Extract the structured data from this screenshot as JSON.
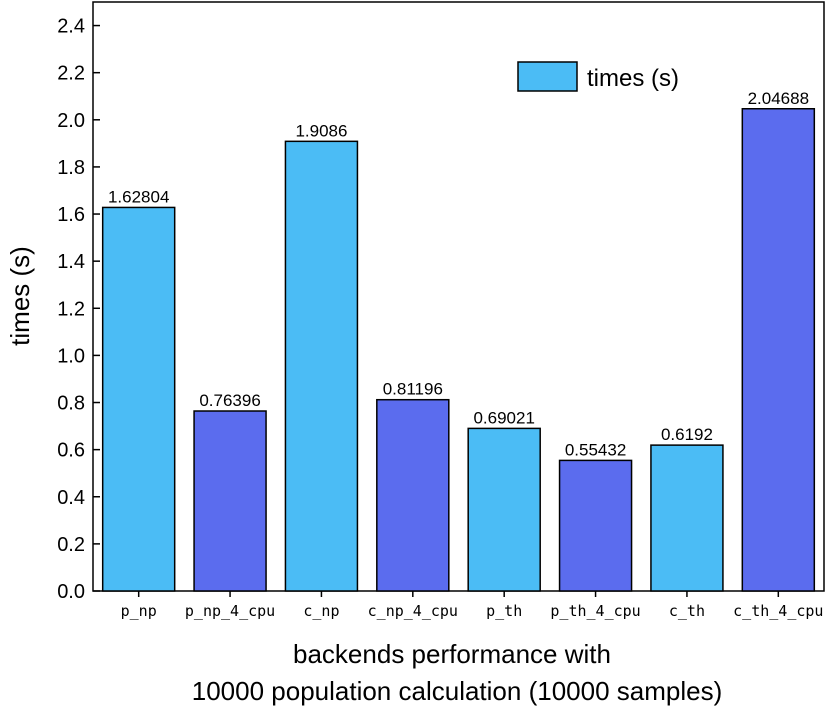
{
  "chart_data": {
    "type": "bar",
    "categories": [
      "p_np",
      "p_np_4_cpu",
      "c_np",
      "c_np_4_cpu",
      "p_th",
      "p_th_4_cpu",
      "c_th",
      "c_th_4_cpu"
    ],
    "values": [
      1.62804,
      0.76396,
      1.9086,
      0.81196,
      0.69021,
      0.55432,
      0.6192,
      2.04688
    ],
    "value_labels": [
      "1.62804",
      "0.76396",
      "1.9086",
      "0.81196",
      "0.69021",
      "0.55432",
      "0.6192",
      "2.04688"
    ],
    "bar_colors": [
      "#4bbcf5",
      "#5b6cee",
      "#4bbcf5",
      "#5b6cee",
      "#4bbcf5",
      "#5b6cee",
      "#4bbcf5",
      "#5b6cee"
    ],
    "series": [
      {
        "name": "times (s)",
        "values": [
          1.62804,
          0.76396,
          1.9086,
          0.81196,
          0.69021,
          0.55432,
          0.6192,
          2.04688
        ]
      }
    ],
    "title": "",
    "xlabel_line1": "backends performance with",
    "xlabel_line2": "10000 population calculation (10000 samples)",
    "ylabel": "times (s)",
    "ylim": [
      0,
      2.5
    ],
    "yticks": [
      "0.0",
      "0.2",
      "0.4",
      "0.6",
      "0.8",
      "1.0",
      "1.2",
      "1.4",
      "1.6",
      "1.8",
      "2.0",
      "2.2",
      "2.4"
    ],
    "legend": {
      "label": "times (s)",
      "position": "top-right",
      "color": "#4bbcf5"
    },
    "grid": false
  }
}
